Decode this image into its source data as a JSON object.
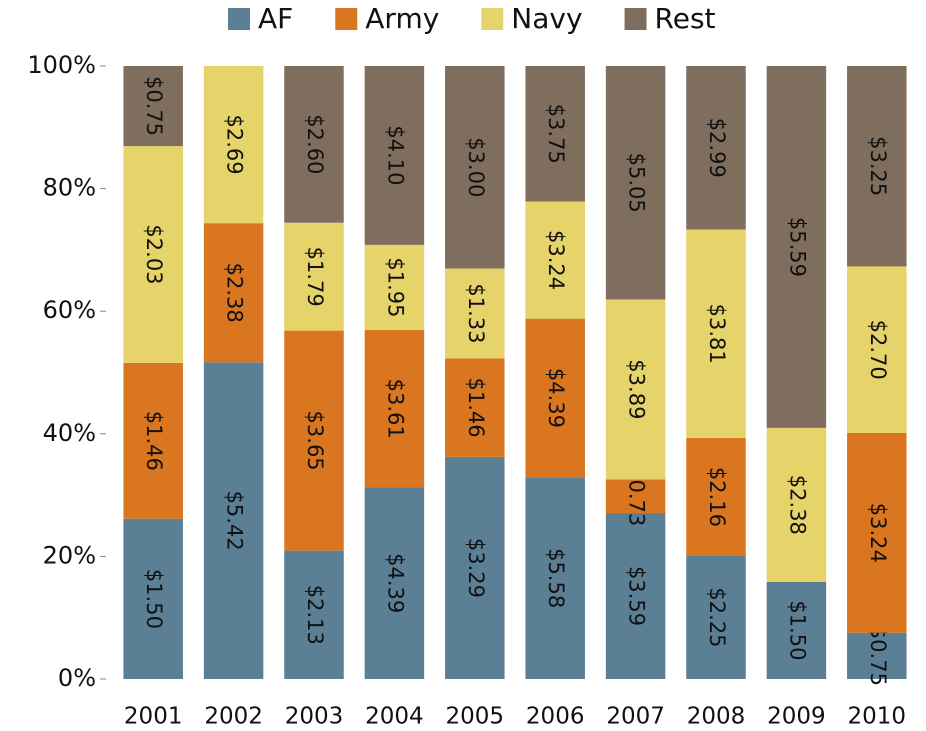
{
  "chart_data": {
    "type": "bar",
    "stacking": "percent",
    "categories": [
      "2001",
      "2002",
      "2003",
      "2004",
      "2005",
      "2006",
      "2007",
      "2008",
      "2009",
      "2010"
    ],
    "series": [
      {
        "name": "AF",
        "color": "#5b7f95",
        "values": [
          1.5,
          5.42,
          2.13,
          4.39,
          3.29,
          5.58,
          3.59,
          2.25,
          1.5,
          0.75
        ],
        "value_labels": [
          "$1.50",
          "$5.42",
          "$2.13",
          "$4.39",
          "$3.29",
          "$5.58",
          "$3.59",
          "$2.25",
          "$1.50",
          "$0.75"
        ]
      },
      {
        "name": "Army",
        "color": "#d9761f",
        "values": [
          1.46,
          2.38,
          3.65,
          3.61,
          1.46,
          4.39,
          0.73,
          2.16,
          null,
          3.24
        ],
        "value_labels": [
          "$1.46",
          "$2.38",
          "$3.65",
          "$3.61",
          "$1.46",
          "$4.39",
          "$0.73",
          "$2.16",
          null,
          "$3.24"
        ]
      },
      {
        "name": "Navy",
        "color": "#e6d36a",
        "values": [
          2.03,
          2.69,
          1.79,
          1.95,
          1.33,
          3.24,
          3.89,
          3.81,
          2.38,
          2.7
        ],
        "value_labels": [
          "$2.03",
          "$2.69",
          "$1.79",
          "$1.95",
          "$1.33",
          "$3.24",
          "$3.89",
          "$3.81",
          "$2.38",
          "$2.70"
        ]
      },
      {
        "name": "Rest",
        "color": "#7f6e5e",
        "values": [
          0.75,
          null,
          2.6,
          4.1,
          3.0,
          3.75,
          5.05,
          2.99,
          5.59,
          3.25
        ],
        "value_labels": [
          "$0.75",
          null,
          "$2.60",
          "$4.10",
          "$3.00",
          "$3.75",
          "$5.05",
          "$2.99",
          "$5.59",
          "$3.25"
        ]
      }
    ],
    "ylim": [
      0,
      100
    ],
    "yticks": [
      {
        "value": 0,
        "label": "0%"
      },
      {
        "value": 20,
        "label": "20%"
      },
      {
        "value": 40,
        "label": "40%"
      },
      {
        "value": 60,
        "label": "60%"
      },
      {
        "value": 80,
        "label": "80%"
      },
      {
        "value": 100,
        "label": "100%"
      }
    ],
    "legend": "top"
  }
}
